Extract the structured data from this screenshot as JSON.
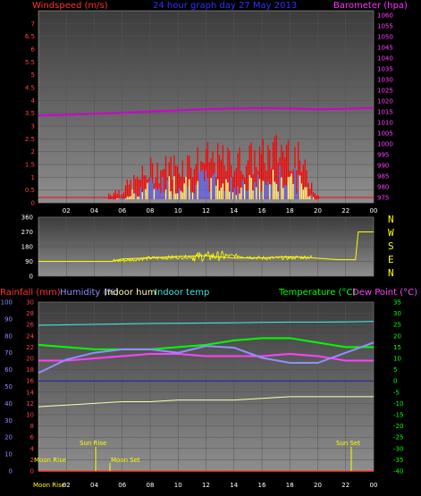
{
  "header": {
    "windspeed_label": "Windspeed (m/s)",
    "title": "24 hour graph day  27 May 2013",
    "barometer_label": "Barometer (hpa)"
  },
  "middle": {
    "directions": [
      "N",
      "W",
      "S",
      "E",
      "N"
    ]
  },
  "bottom_header": {
    "rainfall_label": "Rainfall (mm)",
    "humidity_label": "Humidity (%)",
    "indoor_hum_label": "Indoor hum",
    "indoor_temp_label": "Indoor temp",
    "temperature_label": "Temperature (°C)",
    "dewpoint_label": "Dew Point (°C)"
  },
  "astro": {
    "moon_rise": "Moon Rise",
    "sun_rise": "Sun Rise",
    "moon_set": "Moon Set",
    "sun_set": "Sun Set"
  },
  "footer": {
    "moon_rise_label": "Moon Rise"
  },
  "colors": {
    "background": "#000000",
    "plot_top": "#404040",
    "plot_bottom": "#8c8c8c",
    "wind": "#ff0000",
    "gust": "#ff0000",
    "wind_avg": "#ffff80",
    "wind_blue": "#5070ff",
    "barometer": "#d000d0",
    "wind_dir": "#ffff00",
    "humidity": "#9090ff",
    "indoor_hum": "#ffffb0",
    "indoor_temp": "#40e0e0",
    "temperature": "#00ff00",
    "dewpoint": "#ff40ff",
    "rainfall": "#ff4040",
    "axis_text": "#ffffff"
  },
  "chart_data": [
    {
      "type": "area",
      "title": "24 hour graph day  27 May 2013",
      "xlabel": "",
      "ylabel": "Windspeed (m/s)",
      "y2label": "Barometer (hpa)",
      "x_ticks": [
        "02",
        "04",
        "06",
        "08",
        "10",
        "12",
        "14",
        "16",
        "18",
        "20",
        "22",
        "00"
      ],
      "ylim": [
        0,
        7.5
      ],
      "y_ticks": [
        0,
        0.5,
        1,
        1.5,
        2,
        2.5,
        3,
        3.5,
        4,
        4.5,
        5,
        5.5,
        6,
        6.5,
        7
      ],
      "y2lim": [
        972.5,
        1062
      ],
      "y2_ticks": [
        975,
        980,
        985,
        990,
        995,
        1000,
        1005,
        1010,
        1015,
        1020,
        1025,
        1030,
        1035,
        1040,
        1045,
        1050,
        1055,
        1060
      ],
      "x_hours": [
        0,
        2,
        4,
        6,
        8,
        10,
        12,
        14,
        16,
        18,
        20,
        22,
        24
      ],
      "series": [
        {
          "name": "Barometer",
          "axis": "y2",
          "values": [
            1013.2,
            1013.5,
            1014.0,
            1014.5,
            1015.1,
            1015.6,
            1016.1,
            1016.5,
            1016.6,
            1016.5,
            1016.1,
            1016.3,
            1016.8
          ]
        },
        {
          "name": "Gust",
          "axis": "y",
          "values": [
            0,
            0,
            0.2,
            0.5,
            1.2,
            1.4,
            1.6,
            1.5,
            1.7,
            2.1,
            0.3,
            0,
            0
          ]
        },
        {
          "name": "Windspeed",
          "axis": "y",
          "values": [
            0,
            0,
            0,
            0.2,
            0.7,
            0.8,
            0.9,
            0.7,
            0.8,
            1.1,
            0.1,
            0,
            0
          ]
        }
      ]
    },
    {
      "type": "line",
      "ylabel": "",
      "ylim": [
        0,
        360
      ],
      "y_ticks": [
        0,
        90,
        180,
        270,
        360
      ],
      "x_hours": [
        0,
        2,
        4,
        5.3,
        6,
        8,
        10,
        12,
        14,
        16,
        18,
        19.6,
        21.5,
        22.7,
        22.9,
        24
      ],
      "series": [
        {
          "name": "Wind direction",
          "values": [
            90,
            90,
            90,
            90,
            105,
            112,
            120,
            125,
            110,
            112,
            118,
            112,
            100,
            100,
            270,
            270
          ]
        }
      ]
    },
    {
      "type": "line",
      "ylabel": "Rainfall (mm)",
      "ylim": [
        0,
        30
      ],
      "y_ticks": [
        0,
        2,
        4,
        6,
        8,
        10,
        12,
        14,
        16,
        18,
        20,
        22,
        24,
        26,
        28,
        30
      ],
      "y_humidity_ticks": [
        0,
        10,
        20,
        30,
        40,
        50,
        60,
        70,
        80,
        90,
        100
      ],
      "y2label": "Temperature (°C)",
      "y2lim": [
        -40,
        35
      ],
      "y2_ticks": [
        -40,
        -35,
        -30,
        -25,
        -20,
        -15,
        -10,
        -5,
        0,
        5,
        10,
        15,
        20,
        25,
        30,
        35
      ],
      "x_hours": [
        0,
        2,
        4,
        6,
        8,
        10,
        12,
        14,
        16,
        18,
        20,
        22,
        24
      ],
      "series": [
        {
          "name": "Humidity",
          "axis": "humidity",
          "values": [
            58,
            66,
            70,
            72,
            72,
            70,
            74,
            73,
            67,
            64,
            64,
            70,
            76
          ]
        },
        {
          "name": "Indoor hum",
          "axis": "humidity",
          "values": [
            38,
            39,
            40,
            41,
            41,
            42,
            42,
            42,
            43,
            44,
            44,
            44,
            44
          ]
        },
        {
          "name": "Indoor temp",
          "axis": "y2",
          "values": [
            24.7,
            24.9,
            25.1,
            25.3,
            25.5,
            25.6,
            25.7,
            25.8,
            26.0,
            26.1,
            26.1,
            26.2,
            26.4
          ]
        },
        {
          "name": "Temperature",
          "axis": "y2",
          "values": [
            16,
            15,
            14,
            14,
            14,
            15,
            16,
            18,
            19,
            19,
            17,
            15,
            15
          ]
        },
        {
          "name": "Dew Point",
          "axis": "y2",
          "values": [
            9,
            9,
            10,
            11,
            12,
            12,
            11,
            11,
            11,
            12,
            11,
            9,
            9
          ]
        },
        {
          "name": "Rainfall",
          "axis": "y",
          "values": [
            0,
            0,
            0,
            0,
            0,
            0,
            0,
            0,
            0,
            0,
            0,
            0,
            0
          ]
        }
      ]
    }
  ]
}
